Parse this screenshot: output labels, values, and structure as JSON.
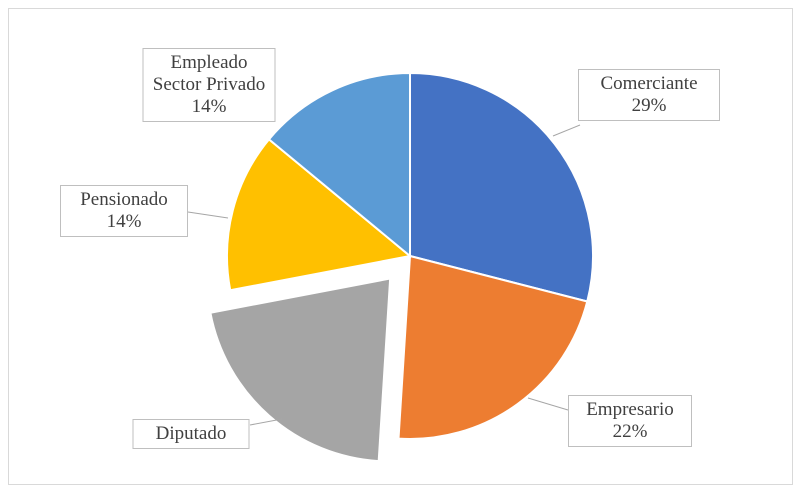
{
  "chart_data": {
    "type": "pie",
    "categories": [
      "Comerciante",
      "Empresario",
      "Diputado",
      "Pensionado",
      "Empleado Sector Privado"
    ],
    "values": [
      29,
      22,
      21,
      14,
      14
    ],
    "value_labels": [
      "29%",
      "22%",
      null,
      "14%",
      "14%"
    ],
    "colors": [
      "#4472c4",
      "#ed7d31",
      "#a5a5a5",
      "#ffc000",
      "#5b9bd5"
    ],
    "exploded": [
      false,
      false,
      true,
      false,
      false
    ]
  }
}
